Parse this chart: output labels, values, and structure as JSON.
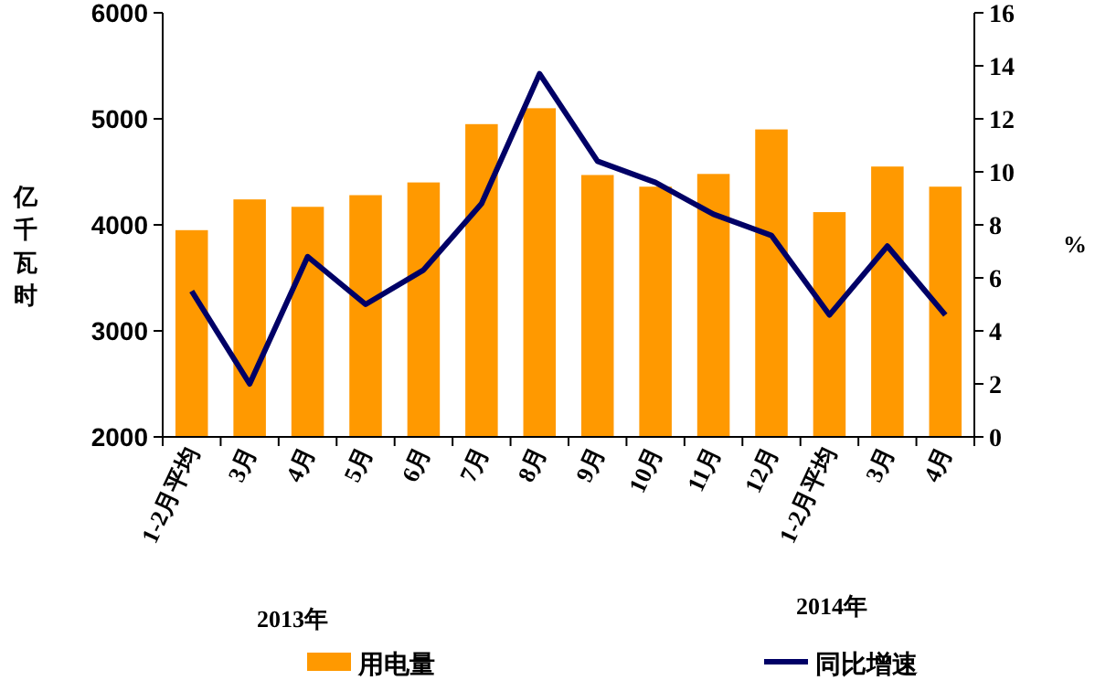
{
  "chart_data": {
    "type": "bar",
    "categories": [
      "1-2月平均",
      "3月",
      "4月",
      "5月",
      "6月",
      "7月",
      "8月",
      "9月",
      "10月",
      "11月",
      "12月",
      "1-2月平均",
      "3月",
      "4月"
    ],
    "series": [
      {
        "name": "用电量",
        "color": "#ff9900",
        "values": [
          3950,
          4240,
          4170,
          4280,
          4400,
          4950,
          5100,
          4470,
          4360,
          4480,
          4900,
          4120,
          4550,
          4360
        ]
      },
      {
        "name": "同比增速",
        "type": "line",
        "axis": "y2",
        "color": "#000066",
        "values": [
          5.5,
          2.0,
          6.8,
          5.0,
          6.3,
          8.8,
          13.7,
          10.4,
          9.6,
          8.4,
          7.6,
          4.6,
          7.2,
          4.6
        ]
      }
    ],
    "ylabel": "亿千瓦时",
    "y2label": "%",
    "ylim": [
      2000,
      6000
    ],
    "yticks": [
      2000,
      3000,
      4000,
      5000,
      6000
    ],
    "y2lim": [
      0,
      16
    ],
    "y2ticks": [
      0,
      2,
      4,
      6,
      8,
      10,
      12,
      14,
      16
    ],
    "annotations": [
      "2013年",
      "2014年"
    ],
    "legend": "bottom",
    "grid": false
  }
}
